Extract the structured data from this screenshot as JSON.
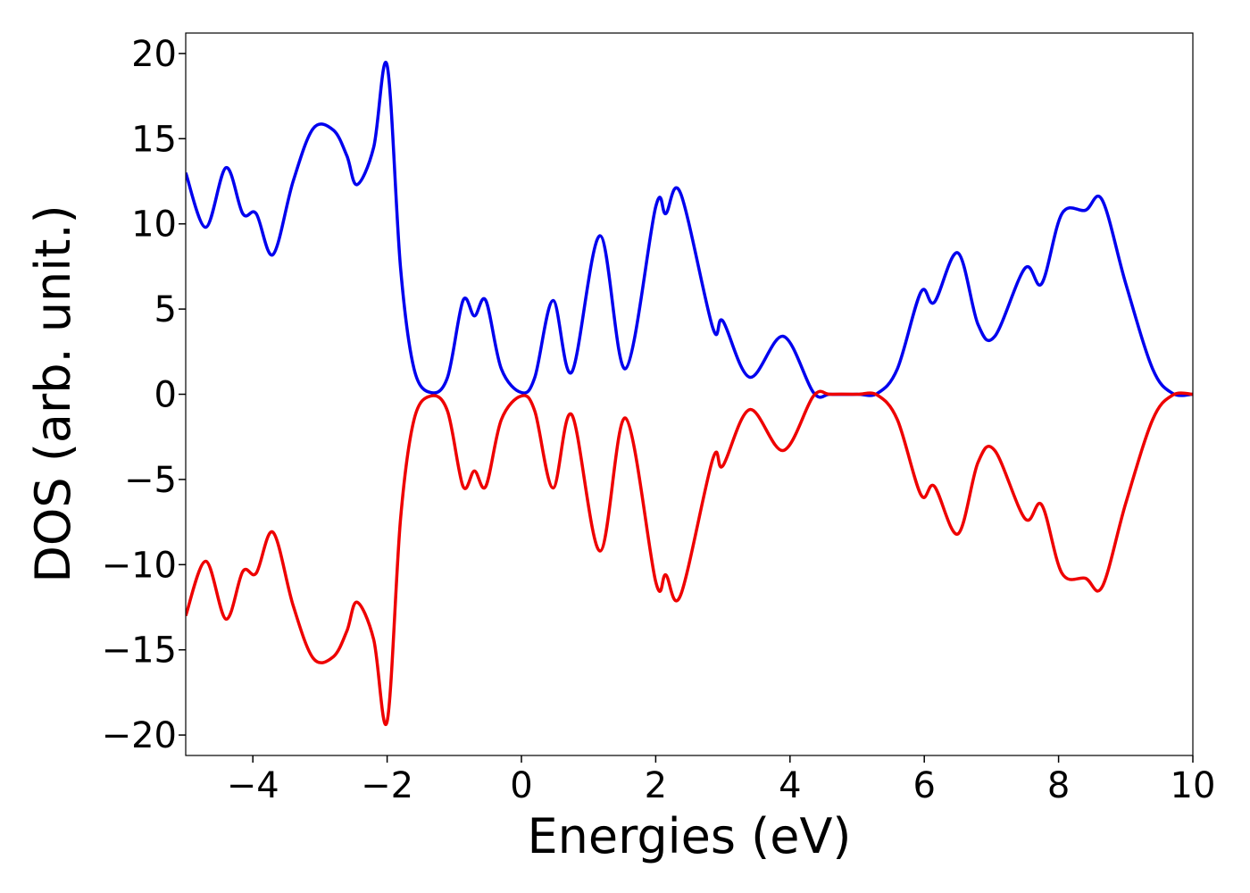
{
  "chart_data": {
    "type": "line",
    "x_label": "Energies (eV)",
    "y_label": "DOS (arb. unit.)",
    "xlim": [
      -5,
      10
    ],
    "ylim": [
      -21.2,
      21.2
    ],
    "xticks": [
      {
        "value": -4,
        "label": "−4"
      },
      {
        "value": -2,
        "label": "−2"
      },
      0,
      2,
      4,
      6,
      8,
      10
    ],
    "yticks": [
      {
        "value": -20,
        "label": "−20"
      },
      {
        "value": -15,
        "label": "−15"
      },
      {
        "value": -10,
        "label": "−10"
      },
      {
        "value": -5,
        "label": "−5"
      },
      0,
      5,
      10,
      15,
      20
    ],
    "x": [
      -5,
      -4.7,
      -4.4,
      -4.15,
      -3.95,
      -3.7,
      -3.4,
      -3.1,
      -2.8,
      -2.6,
      -2.45,
      -2.2,
      -2.0,
      -1.8,
      -1.6,
      -1.35,
      -1.1,
      -0.87,
      -0.7,
      -0.53,
      -0.3,
      0,
      0.2,
      0.47,
      0.75,
      1.17,
      1.55,
      2.0,
      2.15,
      2.37,
      2.85,
      3.0,
      3.4,
      3.9,
      4.35,
      4.6,
      5.0,
      5.3,
      5.6,
      5.95,
      6.15,
      6.5,
      6.8,
      7.05,
      7.5,
      7.75,
      8.05,
      8.4,
      8.65,
      9.0,
      9.4,
      9.7,
      10
    ],
    "series": [
      {
        "color": "#0000ee",
        "values": [
          13.0,
          9.8,
          13.3,
          10.6,
          10.6,
          8.2,
          12.5,
          15.6,
          15.5,
          14.0,
          12.3,
          14.5,
          19.3,
          7.4,
          1.5,
          0.1,
          1.0,
          5.5,
          4.6,
          5.5,
          1.5,
          0.1,
          1.0,
          5.5,
          1.3,
          9.3,
          1.5,
          11.0,
          10.6,
          11.8,
          3.9,
          4.3,
          1.0,
          3.4,
          0.1,
          0,
          0,
          0.05,
          1.5,
          6.0,
          5.4,
          8.3,
          4.1,
          3.4,
          7.4,
          6.5,
          10.6,
          10.8,
          11.4,
          6.5,
          1.5,
          0.05,
          0
        ]
      },
      {
        "color": "#ee0000",
        "values": [
          -13.0,
          -9.8,
          -13.2,
          -10.4,
          -10.5,
          -8.1,
          -12.4,
          -15.5,
          -15.4,
          -13.9,
          -12.2,
          -14.4,
          -19.2,
          -7.3,
          -1.5,
          -0.1,
          -1.0,
          -5.4,
          -4.5,
          -5.4,
          -1.5,
          -0.1,
          -1.0,
          -5.5,
          -1.2,
          -9.2,
          -1.4,
          -11.0,
          -10.6,
          -11.8,
          -3.8,
          -4.2,
          -0.9,
          -3.3,
          -0.1,
          0,
          0,
          -0.05,
          -1.5,
          -5.9,
          -5.4,
          -8.2,
          -4.0,
          -3.3,
          -7.3,
          -6.5,
          -10.5,
          -10.8,
          -11.3,
          -6.4,
          -1.5,
          -0.05,
          0
        ]
      }
    ]
  }
}
